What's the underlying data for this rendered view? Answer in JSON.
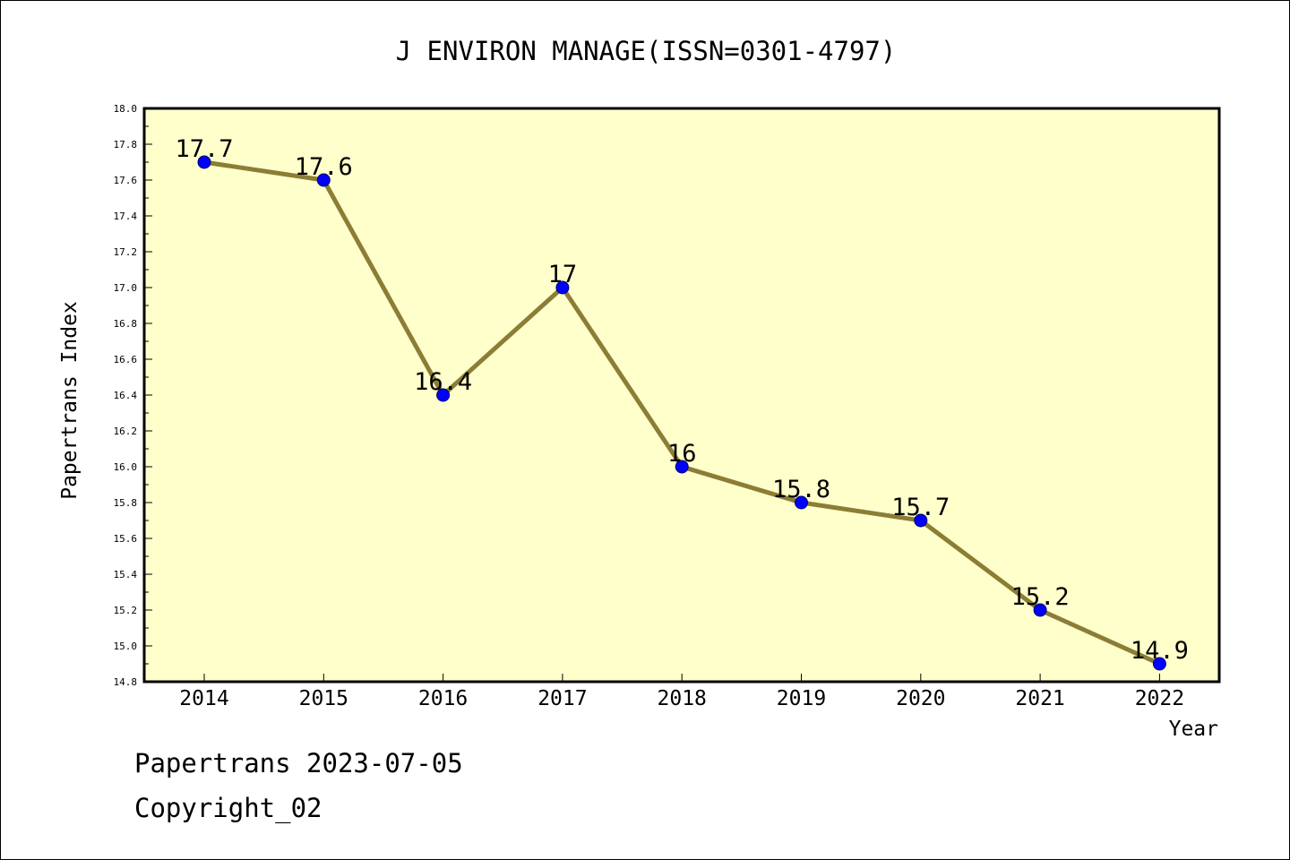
{
  "chart_data": {
    "type": "line",
    "title": "J ENVIRON MANAGE(ISSN=0301-4797)",
    "xlabel": "Year",
    "ylabel": "Papertrans Index",
    "categories": [
      "2014",
      "2015",
      "2016",
      "2017",
      "2018",
      "2019",
      "2020",
      "2021",
      "2022"
    ],
    "series": [
      {
        "values": [
          17.7,
          17.6,
          16.4,
          17.0,
          16.0,
          15.8,
          15.7,
          15.2,
          14.9
        ],
        "labels": [
          "17.7",
          "17.6",
          "16.4",
          "17",
          "16",
          "15.8",
          "15.7",
          "15.2",
          "14.9"
        ]
      }
    ],
    "ylim": [
      14.8,
      18.0
    ],
    "y_major_ticks": [
      "14.8",
      "15.0",
      "15.2",
      "15.4",
      "15.6",
      "15.8",
      "16.0",
      "16.2",
      "16.4",
      "16.6",
      "16.8",
      "17.0",
      "17.2",
      "17.4",
      "17.6",
      "17.8",
      "18.0"
    ],
    "grid": false,
    "colors": {
      "plot_background": "#ffffcc",
      "line": "#8c7d35",
      "marker": "#0000ff"
    }
  },
  "footer": {
    "date_line": "Papertrans 2023-07-05",
    "copyright_line": "Copyright_02"
  }
}
